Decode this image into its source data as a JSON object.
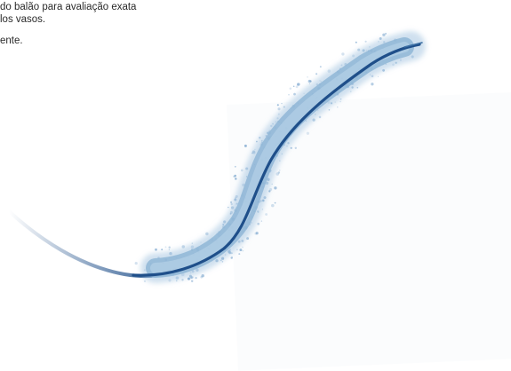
{
  "caption": {
    "line1": " do balão para avaliação exata",
    "line2": "los vasos.",
    "line3": "ente."
  },
  "colors": {
    "text": "#2a2a2a",
    "catheter_dark": "#1f4f8a",
    "balloon": "#8fb6d6",
    "particles": "#7fa8cf"
  },
  "icons": {
    "illustration": "balloon-catheter-icon"
  }
}
